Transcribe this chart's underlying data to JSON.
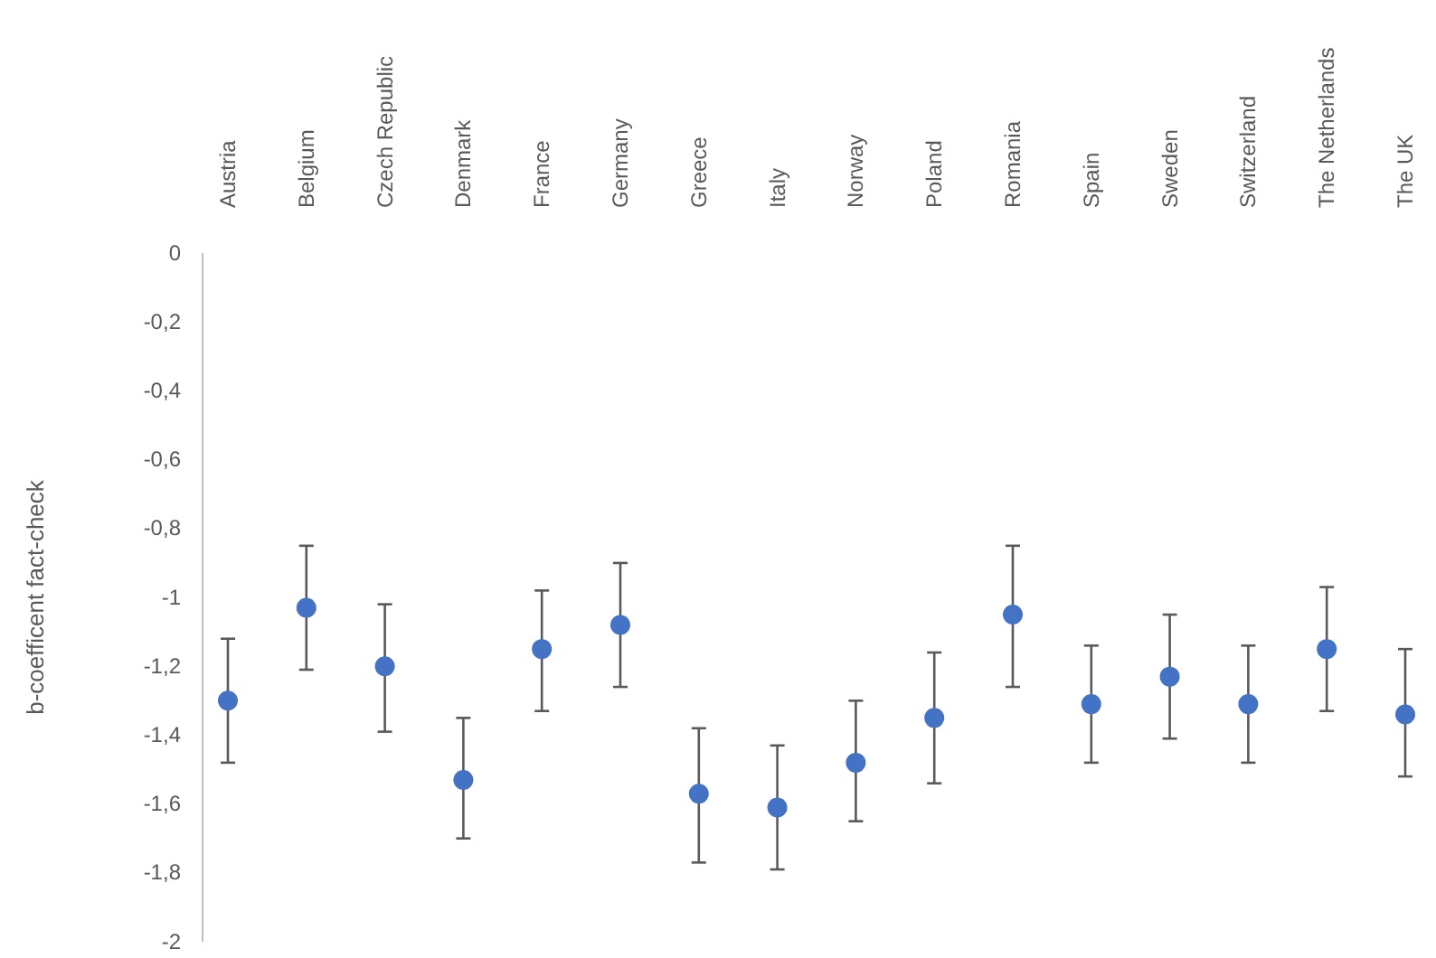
{
  "chart_data": {
    "type": "scatter",
    "ylabel": "b-coefficent fact-check",
    "categories": [
      "Austria",
      "Belgium",
      "Czech Republic",
      "Denmark",
      "France",
      "Germany",
      "Greece",
      "Italy",
      "Norway",
      "Poland",
      "Romania",
      "Spain",
      "Sweden",
      "Switzerland",
      "The Netherlands",
      "The UK"
    ],
    "series": [
      {
        "color": "#4472c4",
        "values": [
          -1.3,
          -1.03,
          -1.2,
          -1.53,
          -1.15,
          -1.08,
          -1.57,
          -1.61,
          -1.48,
          -1.35,
          -1.05,
          -1.31,
          -1.23,
          -1.31,
          -1.15,
          -1.34
        ],
        "errors": [
          [
            -1.48,
            -1.12
          ],
          [
            -1.21,
            -0.85
          ],
          [
            -1.39,
            -1.02
          ],
          [
            -1.7,
            -1.35
          ],
          [
            -1.33,
            -0.98
          ],
          [
            -1.26,
            -0.9
          ],
          [
            -1.77,
            -1.38
          ],
          [
            -1.79,
            -1.43
          ],
          [
            -1.65,
            -1.3
          ],
          [
            -1.54,
            -1.16
          ],
          [
            -1.26,
            -0.85
          ],
          [
            -1.48,
            -1.14
          ],
          [
            -1.41,
            -1.05
          ],
          [
            -1.48,
            -1.14
          ],
          [
            -1.33,
            -0.97
          ],
          [
            -1.52,
            -1.15
          ]
        ]
      }
    ],
    "ylim": [
      -2,
      0
    ],
    "yticks": [
      {
        "value": 0,
        "label": "0"
      },
      {
        "value": -0.2,
        "label": "-0,2"
      },
      {
        "value": -0.4,
        "label": "-0,4"
      },
      {
        "value": -0.6,
        "label": "-0,6"
      },
      {
        "value": -0.8,
        "label": "-0,8"
      },
      {
        "value": -1,
        "label": "-1"
      },
      {
        "value": -1.2,
        "label": "-1,2"
      },
      {
        "value": -1.4,
        "label": "-1,4"
      },
      {
        "value": -1.6,
        "label": "-1,6"
      },
      {
        "value": -1.8,
        "label": "-1,8"
      },
      {
        "value": -2,
        "label": "-2"
      }
    ],
    "marker": "circle",
    "grid": false
  }
}
